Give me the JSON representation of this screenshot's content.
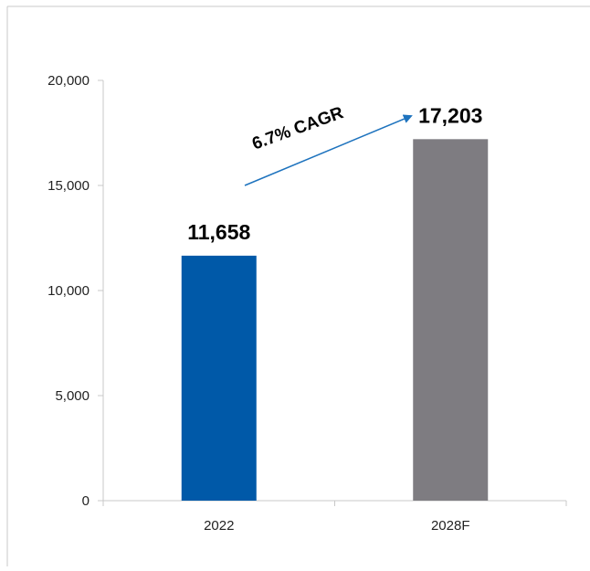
{
  "chart_data": {
    "type": "bar",
    "categories": [
      "2022",
      "2028F"
    ],
    "values": [
      11658,
      17203
    ],
    "value_labels": [
      "11,658",
      "17,203"
    ],
    "bar_colors": [
      "#0059a8",
      "#7e7c81"
    ],
    "title": "",
    "xlabel": "",
    "ylabel": "",
    "ylim": [
      0,
      20000
    ],
    "yticks": [
      0,
      5000,
      10000,
      15000,
      20000
    ],
    "ytick_labels": [
      "0",
      "5,000",
      "10,000",
      "15,000",
      "20,000"
    ],
    "grid": false,
    "legend": "none",
    "annotation": {
      "text": "6.7% CAGR",
      "arrow_color": "#1e73be"
    }
  }
}
